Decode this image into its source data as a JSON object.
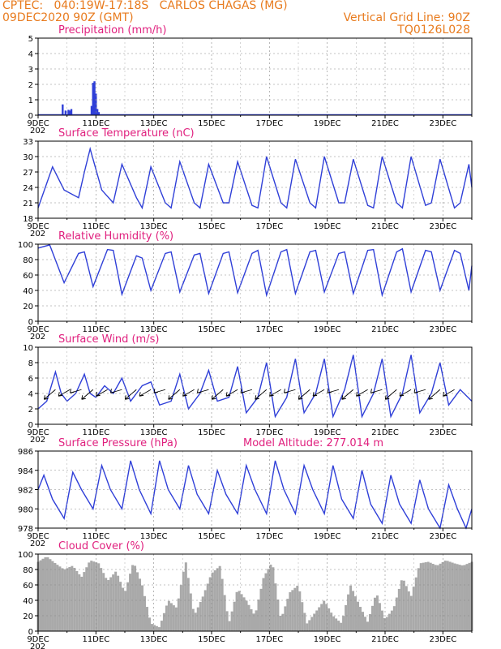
{
  "header": {
    "line1": "CPTEC:   040:19W-17:18S   CARLOS CHAGAS (MG)",
    "line2": "09DEC2020 90Z (GMT)",
    "grid_line": "Vertical Grid Line: 90Z",
    "code": "TQ0126L028"
  },
  "colors": {
    "title": "#e0207e",
    "header": "#e87b1e",
    "line": "#2f3fd8",
    "cloud": "#a9a9a9",
    "frame": "#000000"
  },
  "x_ticks": [
    "9DEC",
    "11DEC",
    "13DEC",
    "15DEC",
    "17DEC",
    "19DEC",
    "21DEC",
    "23DEC"
  ],
  "x_tick_positions_days": [
    0,
    2,
    4,
    6,
    8,
    10,
    12,
    14
  ],
  "year_label": "202",
  "chart_data": [
    {
      "id": "precip",
      "type": "bar",
      "title": "Precipitation (mm/h)",
      "ylim": [
        0,
        5
      ],
      "yticks": [
        0,
        1,
        2,
        3,
        4,
        5
      ],
      "x_unit": "days since 09DEC2020 90Z",
      "bars": [
        [
          0.85,
          0.7
        ],
        [
          0.95,
          0.3
        ],
        [
          1.05,
          0.35
        ],
        [
          1.1,
          0.3
        ],
        [
          1.15,
          0.4
        ],
        [
          1.85,
          0.6
        ],
        [
          1.9,
          2.1
        ],
        [
          1.95,
          2.2
        ],
        [
          2.0,
          1.4
        ],
        [
          2.05,
          0.4
        ],
        [
          2.1,
          0.2
        ],
        [
          3.2,
          0.05
        ],
        [
          3.8,
          0.05
        ],
        [
          5.5,
          0.03
        ],
        [
          7.0,
          0.03
        ],
        [
          9.0,
          0.02
        ],
        [
          11.0,
          0.02
        ],
        [
          13.0,
          0.03
        ],
        [
          14.5,
          0.03
        ]
      ]
    },
    {
      "id": "temperature",
      "type": "line",
      "title": "Surface Temperature (nC)",
      "ylim": [
        18,
        33
      ],
      "yticks": [
        18,
        21,
        24,
        27,
        30,
        33
      ],
      "x": [
        0,
        0.5,
        0.9,
        1.4,
        1.6,
        1.8,
        2.2,
        2.6,
        2.9,
        3.4,
        3.6,
        3.9,
        4.4,
        4.6,
        4.9,
        5.4,
        5.6,
        5.9,
        6.4,
        6.6,
        6.9,
        7.4,
        7.6,
        7.9,
        8.4,
        8.6,
        8.9,
        9.4,
        9.6,
        9.9,
        10.4,
        10.6,
        10.9,
        11.4,
        11.6,
        11.9,
        12.4,
        12.6,
        12.9,
        13.4,
        13.6,
        13.9,
        14.4,
        14.6,
        14.9,
        15.0
      ],
      "values": [
        20,
        28,
        23.5,
        22,
        27,
        31.5,
        23.5,
        21,
        28.5,
        22,
        20,
        28,
        21,
        20,
        29,
        21,
        20,
        28.5,
        21,
        21,
        29,
        20.5,
        20,
        30,
        21,
        20,
        29.5,
        21,
        20,
        30,
        21,
        21,
        29.5,
        20.5,
        20,
        30,
        21,
        20,
        30,
        20.5,
        21,
        29.5,
        20,
        21,
        28.5,
        24
      ]
    },
    {
      "id": "humidity",
      "type": "line",
      "title": "Relative Humidity (%)",
      "ylim": [
        0,
        100
      ],
      "yticks": [
        0,
        20,
        40,
        60,
        80,
        100
      ],
      "x": [
        0,
        0.4,
        0.9,
        1.4,
        1.6,
        1.9,
        2.4,
        2.6,
        2.9,
        3.4,
        3.6,
        3.9,
        4.4,
        4.6,
        4.9,
        5.4,
        5.6,
        5.9,
        6.4,
        6.6,
        6.9,
        7.4,
        7.6,
        7.9,
        8.4,
        8.6,
        8.9,
        9.4,
        9.6,
        9.9,
        10.4,
        10.6,
        10.9,
        11.4,
        11.6,
        11.9,
        12.4,
        12.6,
        12.9,
        13.4,
        13.6,
        13.9,
        14.4,
        14.6,
        14.9,
        15.0
      ],
      "values": [
        95,
        99,
        50,
        88,
        90,
        45,
        93,
        92,
        35,
        85,
        82,
        40,
        88,
        90,
        38,
        86,
        88,
        36,
        88,
        90,
        37,
        88,
        92,
        34,
        90,
        93,
        36,
        90,
        92,
        38,
        88,
        90,
        36,
        92,
        93,
        34,
        90,
        94,
        38,
        92,
        90,
        40,
        92,
        88,
        40,
        72
      ]
    },
    {
      "id": "wind",
      "type": "line",
      "title": "Surface Wind (m/s)",
      "ylim": [
        0,
        10
      ],
      "yticks": [
        0,
        2,
        4,
        6,
        8,
        10
      ],
      "x": [
        0,
        0.3,
        0.6,
        0.8,
        1.0,
        1.3,
        1.6,
        1.8,
        2.0,
        2.3,
        2.6,
        2.9,
        3.2,
        3.6,
        3.9,
        4.2,
        4.6,
        4.9,
        5.2,
        5.6,
        5.9,
        6.2,
        6.6,
        6.9,
        7.2,
        7.6,
        7.9,
        8.2,
        8.6,
        8.9,
        9.2,
        9.6,
        9.9,
        10.2,
        10.6,
        10.9,
        11.2,
        11.6,
        11.9,
        12.2,
        12.6,
        12.9,
        13.2,
        13.6,
        13.9,
        14.2,
        14.6,
        15.0
      ],
      "values": [
        2,
        3,
        6.8,
        4,
        3,
        4,
        6.5,
        4,
        3.5,
        5,
        4,
        6,
        3,
        5,
        5.5,
        2.5,
        3,
        6.5,
        2,
        4,
        7,
        3,
        3.5,
        7.5,
        1.5,
        3.5,
        8,
        1,
        3.5,
        8.5,
        1.5,
        4,
        8.5,
        1,
        4.5,
        9,
        1,
        4,
        8.5,
        1,
        4,
        9,
        1.5,
        4,
        8,
        2.5,
        4.5,
        3
      ]
    },
    {
      "id": "pressure",
      "type": "line",
      "title": "Surface Pressure (hPa)",
      "annotation": "Model Altitude: 277.014 m",
      "ylim": [
        978,
        986
      ],
      "yticks": [
        978,
        980,
        982,
        984,
        986
      ],
      "x": [
        0,
        0.2,
        0.5,
        0.9,
        1.2,
        1.5,
        1.9,
        2.2,
        2.5,
        2.9,
        3.2,
        3.5,
        3.9,
        4.2,
        4.5,
        4.9,
        5.2,
        5.5,
        5.9,
        6.2,
        6.5,
        6.9,
        7.2,
        7.5,
        7.9,
        8.2,
        8.5,
        8.9,
        9.2,
        9.5,
        9.9,
        10.2,
        10.5,
        10.9,
        11.2,
        11.5,
        11.9,
        12.2,
        12.5,
        12.9,
        13.2,
        13.5,
        13.9,
        14.2,
        14.5,
        14.8,
        15.0
      ],
      "values": [
        982,
        983.5,
        981,
        979,
        983.8,
        982,
        980,
        984.5,
        982,
        980,
        985,
        982,
        979.5,
        985,
        982,
        980,
        984.5,
        981.5,
        979.5,
        984,
        981.5,
        979.5,
        984.5,
        982,
        979.5,
        985,
        982,
        979.5,
        984.5,
        982,
        979.5,
        984.5,
        981,
        979,
        984,
        980.5,
        978.5,
        983.5,
        980.5,
        978.5,
        983,
        980,
        978,
        982.5,
        980,
        978,
        980
      ]
    },
    {
      "id": "cloud",
      "type": "area",
      "title": "Cloud Cover (%)",
      "ylim": [
        0,
        100
      ],
      "yticks": [
        0,
        20,
        40,
        60,
        80,
        100
      ],
      "x": [
        0,
        0.3,
        0.6,
        0.9,
        1.2,
        1.5,
        1.8,
        2.1,
        2.4,
        2.7,
        3.0,
        3.3,
        3.6,
        3.9,
        4.2,
        4.5,
        4.8,
        5.1,
        5.4,
        5.7,
        6.0,
        6.3,
        6.6,
        6.9,
        7.2,
        7.5,
        7.8,
        8.1,
        8.4,
        8.7,
        9.0,
        9.3,
        9.6,
        9.9,
        10.2,
        10.5,
        10.8,
        11.1,
        11.4,
        11.7,
        12.0,
        12.3,
        12.6,
        12.9,
        13.2,
        13.5,
        13.8,
        14.1,
        14.4,
        14.7,
        15.0
      ],
      "values": [
        90,
        97,
        88,
        80,
        85,
        70,
        92,
        88,
        65,
        78,
        50,
        90,
        60,
        10,
        5,
        40,
        30,
        92,
        20,
        45,
        75,
        85,
        10,
        55,
        40,
        20,
        70,
        90,
        15,
        50,
        60,
        10,
        25,
        40,
        20,
        10,
        60,
        35,
        12,
        50,
        15,
        30,
        70,
        45,
        88,
        90,
        85,
        92,
        88,
        85,
        90
      ]
    }
  ]
}
